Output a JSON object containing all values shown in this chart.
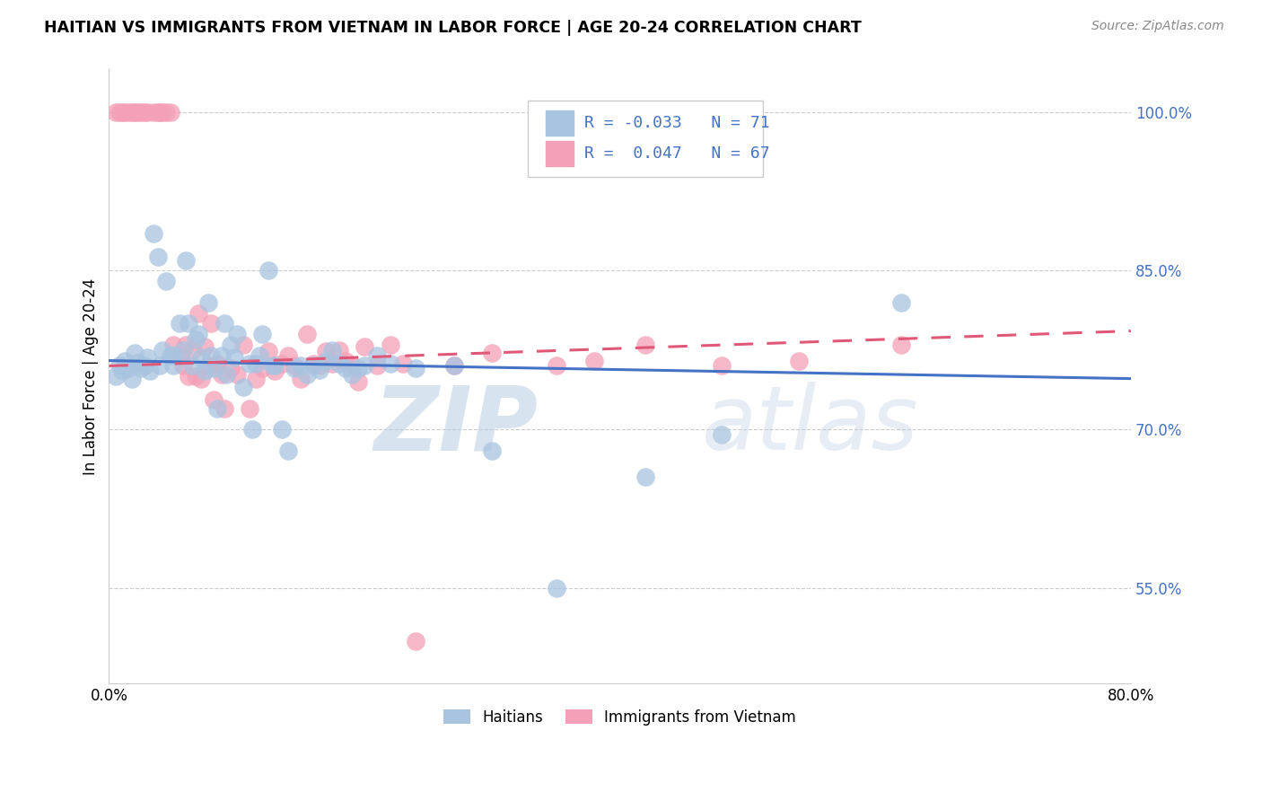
{
  "title": "HAITIAN VS IMMIGRANTS FROM VIETNAM IN LABOR FORCE | AGE 20-24 CORRELATION CHART",
  "source": "Source: ZipAtlas.com",
  "ylabel": "In Labor Force | Age 20-24",
  "legend_label1": "Haitians",
  "legend_label2": "Immigrants from Vietnam",
  "R1": -0.033,
  "N1": 71,
  "R2": 0.047,
  "N2": 67,
  "xlim": [
    0.0,
    0.8
  ],
  "ylim": [
    0.46,
    1.04
  ],
  "yticks": [
    0.55,
    0.7,
    0.85,
    1.0
  ],
  "ytick_labels": [
    "55.0%",
    "70.0%",
    "85.0%",
    "100.0%"
  ],
  "xticks": [
    0.0,
    0.1,
    0.2,
    0.3,
    0.4,
    0.5,
    0.6,
    0.7,
    0.8
  ],
  "blue_color": "#a8c4e0",
  "pink_color": "#f4a0b8",
  "blue_line_color": "#4472c4",
  "pink_line_color": "#e05878",
  "watermark_zip": "ZIP",
  "watermark_atlas": "atlas",
  "blue_scatter_x": [
    0.005,
    0.008,
    0.01,
    0.012,
    0.015,
    0.018,
    0.02,
    0.022,
    0.025,
    0.028,
    0.03,
    0.032,
    0.035,
    0.038,
    0.04,
    0.042,
    0.045,
    0.048,
    0.05,
    0.05,
    0.055,
    0.058,
    0.06,
    0.062,
    0.065,
    0.068,
    0.07,
    0.072,
    0.075,
    0.078,
    0.08,
    0.082,
    0.085,
    0.088,
    0.09,
    0.092,
    0.095,
    0.098,
    0.1,
    0.105,
    0.11,
    0.112,
    0.115,
    0.118,
    0.12,
    0.125,
    0.128,
    0.13,
    0.135,
    0.14,
    0.145,
    0.15,
    0.155,
    0.16,
    0.165,
    0.17,
    0.175,
    0.18,
    0.185,
    0.19,
    0.195,
    0.2,
    0.21,
    0.22,
    0.24,
    0.27,
    0.3,
    0.35,
    0.42,
    0.48,
    0.62
  ],
  "blue_scatter_y": [
    0.75,
    0.76,
    0.755,
    0.765,
    0.758,
    0.748,
    0.772,
    0.763,
    0.758,
    0.76,
    0.768,
    0.755,
    0.885,
    0.863,
    0.76,
    0.775,
    0.84,
    0.77,
    0.77,
    0.76,
    0.8,
    0.775,
    0.86,
    0.8,
    0.76,
    0.785,
    0.79,
    0.768,
    0.755,
    0.82,
    0.77,
    0.758,
    0.72,
    0.77,
    0.8,
    0.752,
    0.78,
    0.768,
    0.79,
    0.74,
    0.762,
    0.7,
    0.762,
    0.77,
    0.79,
    0.85,
    0.76,
    0.76,
    0.7,
    0.68,
    0.758,
    0.76,
    0.752,
    0.76,
    0.756,
    0.765,
    0.775,
    0.762,
    0.758,
    0.752,
    0.758,
    0.76,
    0.77,
    0.762,
    0.758,
    0.76,
    0.68,
    0.55,
    0.655,
    0.695,
    0.82
  ],
  "pink_scatter_x": [
    0.005,
    0.008,
    0.01,
    0.012,
    0.015,
    0.018,
    0.02,
    0.022,
    0.025,
    0.028,
    0.03,
    0.035,
    0.038,
    0.04,
    0.042,
    0.045,
    0.048,
    0.05,
    0.055,
    0.058,
    0.06,
    0.062,
    0.065,
    0.068,
    0.07,
    0.072,
    0.075,
    0.078,
    0.08,
    0.082,
    0.085,
    0.088,
    0.09,
    0.095,
    0.1,
    0.105,
    0.11,
    0.115,
    0.12,
    0.125,
    0.13,
    0.135,
    0.14,
    0.145,
    0.15,
    0.155,
    0.16,
    0.165,
    0.17,
    0.175,
    0.18,
    0.185,
    0.19,
    0.195,
    0.2,
    0.21,
    0.22,
    0.23,
    0.24,
    0.27,
    0.3,
    0.35,
    0.38,
    0.42,
    0.48,
    0.54,
    0.62
  ],
  "pink_scatter_y": [
    1.0,
    1.0,
    1.0,
    1.0,
    1.0,
    1.0,
    1.0,
    1.0,
    1.0,
    1.0,
    1.0,
    1.0,
    1.0,
    1.0,
    1.0,
    1.0,
    1.0,
    0.78,
    0.77,
    0.76,
    0.78,
    0.75,
    0.775,
    0.75,
    0.81,
    0.748,
    0.778,
    0.76,
    0.8,
    0.728,
    0.762,
    0.752,
    0.72,
    0.758,
    0.752,
    0.78,
    0.72,
    0.748,
    0.758,
    0.774,
    0.755,
    0.762,
    0.77,
    0.76,
    0.748,
    0.79,
    0.762,
    0.76,
    0.774,
    0.762,
    0.775,
    0.765,
    0.76,
    0.745,
    0.778,
    0.76,
    0.78,
    0.762,
    0.5,
    0.76,
    0.772,
    0.76,
    0.765,
    0.78,
    0.76,
    0.765,
    0.78
  ],
  "blue_trend_x": [
    0.0,
    0.8
  ],
  "blue_trend_y": [
    0.765,
    0.748
  ],
  "pink_trend_x": [
    0.0,
    0.8
  ],
  "pink_trend_y": [
    0.76,
    0.793
  ]
}
